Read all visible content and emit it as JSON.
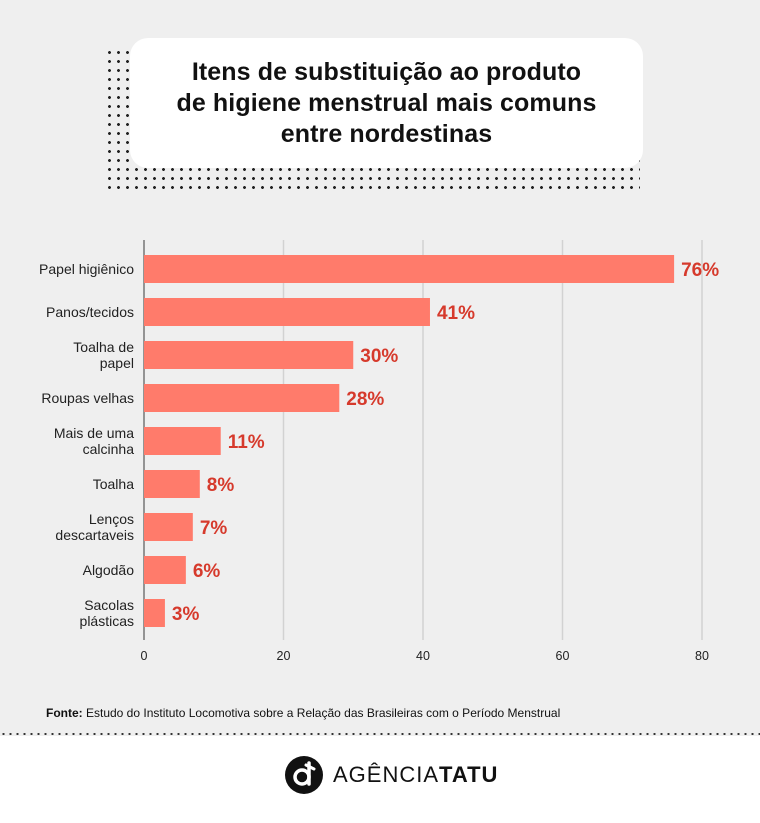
{
  "title": "Itens de substituição ao produto\nde higiene menstrual mais comuns\nentre nordestinas",
  "chart_data": {
    "type": "bar",
    "orientation": "horizontal",
    "categories": [
      "Papel higiênico",
      "Panos/tecidos",
      "Toalha de papel",
      "Roupas velhas",
      "Mais de uma calcinha",
      "Toalha",
      "Lenços descartaveis",
      "Algodão",
      "Sacolas plásticas"
    ],
    "category_lines": [
      [
        "Papel higiênico"
      ],
      [
        "Panos/tecidos"
      ],
      [
        "Toalha de",
        "papel"
      ],
      [
        "Roupas velhas"
      ],
      [
        "Mais de uma",
        "calcinha"
      ],
      [
        "Toalha"
      ],
      [
        "Lenços",
        "descartaveis"
      ],
      [
        "Algodão"
      ],
      [
        "Sacolas",
        "plásticas"
      ]
    ],
    "values": [
      76,
      41,
      30,
      28,
      11,
      8,
      7,
      6,
      3
    ],
    "value_labels": [
      "76%",
      "41%",
      "30%",
      "28%",
      "11%",
      "8%",
      "7%",
      "6%",
      "3%"
    ],
    "xticks": [
      0,
      20,
      40,
      60,
      80
    ],
    "xlim": [
      0,
      80
    ],
    "grid": true,
    "bar_color": "#ff7b6b",
    "label_color": "#d63a2c"
  },
  "source": {
    "prefix": "Fonte:",
    "text": " Estudo do Instituto Locomotiva sobre a Relação das Brasileiras com o Período Menstrual"
  },
  "logo": {
    "text_light": "AGÊNCIA",
    "text_bold": "TATU",
    "icon": "agencia-tatu-logo-icon"
  }
}
